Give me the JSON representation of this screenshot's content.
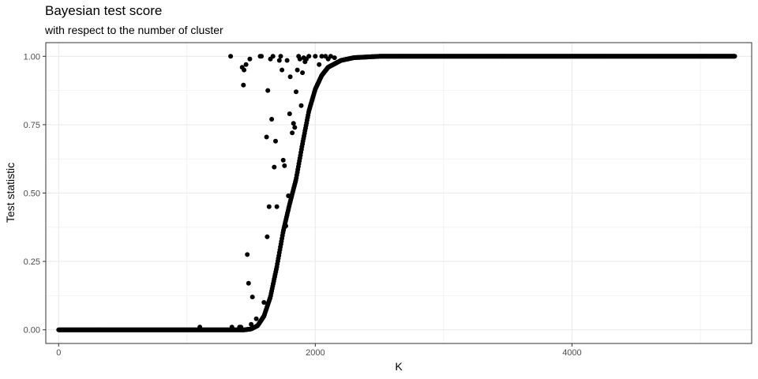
{
  "chart_data": {
    "type": "scatter",
    "title": "Bayesian test score",
    "subtitle": "with respect to the number of cluster",
    "xlabel": "K",
    "ylabel": "Test statistic",
    "xlim": [
      -100,
      5400
    ],
    "ylim": [
      -0.05,
      1.05
    ],
    "xticks": [
      0,
      2000,
      4000
    ],
    "xtick_labels": [
      "0",
      "2000",
      "4000"
    ],
    "yticks": [
      0,
      0.25,
      0.5,
      0.75,
      1
    ],
    "ytick_labels": [
      "0.00",
      "0.25",
      "0.50",
      "0.75",
      "1.00"
    ],
    "grid": true,
    "legend": "none",
    "colors": {
      "points": "#000000",
      "grid": "#ebebeb",
      "panel_border": "#333333"
    },
    "series_description": "Dense sigmoid band: test statistic near 0 for K < ~1450, rising steeply between ~1600 and ~2100, saturating at 1 for K > ~2300 up to ~5270",
    "curve": [
      [
        0,
        0.0
      ],
      [
        500,
        0.0
      ],
      [
        1000,
        0.0
      ],
      [
        1300,
        0.0
      ],
      [
        1450,
        0.0
      ],
      [
        1500,
        0.003
      ],
      [
        1550,
        0.015
      ],
      [
        1600,
        0.05
      ],
      [
        1650,
        0.12
      ],
      [
        1700,
        0.23
      ],
      [
        1750,
        0.36
      ],
      [
        1800,
        0.46
      ],
      [
        1850,
        0.55
      ],
      [
        1900,
        0.68
      ],
      [
        1950,
        0.8
      ],
      [
        2000,
        0.88
      ],
      [
        2050,
        0.93
      ],
      [
        2100,
        0.96
      ],
      [
        2200,
        0.985
      ],
      [
        2300,
        0.995
      ],
      [
        2500,
        1.0
      ],
      [
        3000,
        1.0
      ],
      [
        4000,
        1.0
      ],
      [
        5000,
        1.0
      ],
      [
        5270,
        1.0
      ]
    ],
    "outliers": [
      [
        1100,
        0.01
      ],
      [
        1340,
        1.0
      ],
      [
        1350,
        0.01
      ],
      [
        1410,
        0.01
      ],
      [
        1420,
        0.01
      ],
      [
        1430,
        0.96
      ],
      [
        1440,
        0.895
      ],
      [
        1445,
        0.95
      ],
      [
        1460,
        0.97
      ],
      [
        1470,
        0.275
      ],
      [
        1480,
        0.17
      ],
      [
        1490,
        0.99
      ],
      [
        1500,
        0.02
      ],
      [
        1510,
        0.12
      ],
      [
        1540,
        0.04
      ],
      [
        1570,
        1.0
      ],
      [
        1580,
        1.0
      ],
      [
        1600,
        0.1
      ],
      [
        1620,
        0.705
      ],
      [
        1625,
        0.34
      ],
      [
        1630,
        0.875
      ],
      [
        1640,
        0.45
      ],
      [
        1650,
        0.99
      ],
      [
        1660,
        0.77
      ],
      [
        1670,
        1.0
      ],
      [
        1680,
        0.595
      ],
      [
        1690,
        0.69
      ],
      [
        1700,
        0.45
      ],
      [
        1720,
        0.985
      ],
      [
        1730,
        1.0
      ],
      [
        1740,
        0.95
      ],
      [
        1750,
        0.62
      ],
      [
        1760,
        0.6
      ],
      [
        1770,
        0.38
      ],
      [
        1780,
        0.985
      ],
      [
        1790,
        0.49
      ],
      [
        1800,
        0.79
      ],
      [
        1805,
        0.925
      ],
      [
        1820,
        0.72
      ],
      [
        1830,
        0.755
      ],
      [
        1840,
        0.74
      ],
      [
        1850,
        0.87
      ],
      [
        1860,
        0.95
      ],
      [
        1870,
        1.0
      ],
      [
        1880,
        0.99
      ],
      [
        1890,
        0.82
      ],
      [
        1900,
        0.94
      ],
      [
        1910,
        0.995
      ],
      [
        1920,
        0.98
      ],
      [
        1930,
        0.99
      ],
      [
        1950,
        1.0
      ],
      [
        2000,
        1.0
      ],
      [
        2030,
        0.97
      ],
      [
        2050,
        1.0
      ],
      [
        2080,
        1.0
      ],
      [
        2100,
        0.99
      ],
      [
        2120,
        1.0
      ],
      [
        2150,
        0.995
      ]
    ]
  }
}
